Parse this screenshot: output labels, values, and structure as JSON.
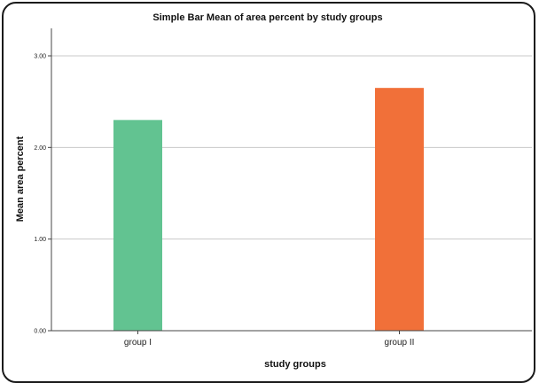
{
  "chart_data": {
    "type": "bar",
    "title": "Simple Bar Mean of area percent by study groups",
    "xlabel": "study groups",
    "ylabel": "Mean area percent",
    "categories": [
      "group I",
      "group II"
    ],
    "values": [
      2.3,
      2.65
    ],
    "colors": [
      "#62c391",
      "#f17039"
    ],
    "ylim": [
      0,
      3.0
    ],
    "yticks": [
      "0.00",
      "1.00",
      "2.00",
      "3.00"
    ],
    "grid": true
  }
}
